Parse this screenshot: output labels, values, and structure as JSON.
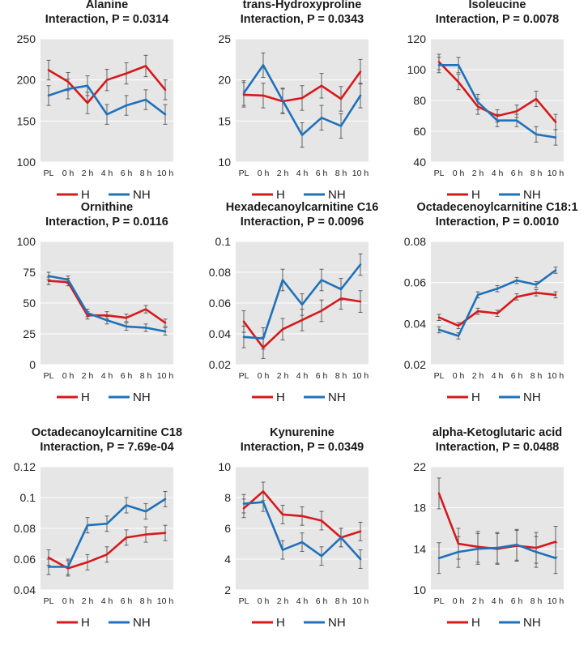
{
  "figure": {
    "legend": [
      {
        "key": "H",
        "label": "H",
        "color": "#d7191c"
      },
      {
        "key": "NH",
        "label": "NH",
        "color": "#1f72b9"
      }
    ],
    "plot_background": "#e6e6e6",
    "gridline_color": "#ffffff",
    "error_bar_color": "#555555"
  },
  "chart_data": [
    {
      "type": "line",
      "name": "Alanine",
      "title": "Alanine",
      "subtitle": "Interaction, P = 0.0314",
      "categories": [
        "PL",
        "0 h",
        "2 h",
        "4 h",
        "6 h",
        "8 h",
        "10 h"
      ],
      "ylim": [
        100,
        250
      ],
      "yticks": [
        100,
        150,
        200,
        250
      ],
      "ytick_labels": [
        "100",
        "150",
        "200",
        "250"
      ],
      "grid": true,
      "legend_position": "bottom",
      "series": [
        {
          "name": "H",
          "values": [
            212,
            198,
            172,
            200,
            208,
            217,
            188
          ],
          "errors": [
            12,
            11,
            13,
            13,
            13,
            13,
            12
          ]
        },
        {
          "name": "NH",
          "values": [
            181,
            189,
            193,
            158,
            169,
            176,
            158
          ],
          "errors": [
            12,
            12,
            12,
            12,
            12,
            12,
            12
          ]
        }
      ]
    },
    {
      "type": "line",
      "name": "trans-Hydroxyproline",
      "title": "trans-Hydroxyproline",
      "subtitle": "Interaction, P = 0.0343",
      "categories": [
        "PL",
        "0 h",
        "2 h",
        "4 h",
        "6 h",
        "8 h",
        "10 h"
      ],
      "ylim": [
        10,
        25
      ],
      "yticks": [
        10,
        15,
        20,
        25
      ],
      "ytick_labels": [
        "10",
        "15",
        "20",
        "25"
      ],
      "grid": true,
      "legend_position": "bottom",
      "series": [
        {
          "name": "H",
          "values": [
            18.2,
            18.1,
            17.4,
            17.8,
            19.3,
            17.7,
            21.0
          ],
          "errors": [
            1.5,
            1.5,
            1.5,
            1.5,
            1.5,
            1.5,
            1.5
          ]
        },
        {
          "name": "NH",
          "values": [
            18.4,
            21.8,
            17.5,
            13.3,
            15.4,
            14.4,
            18.1
          ],
          "errors": [
            1.5,
            1.5,
            1.5,
            1.5,
            1.5,
            1.5,
            1.5
          ]
        }
      ]
    },
    {
      "type": "line",
      "name": "Isoleucine",
      "title": "Isoleucine",
      "subtitle": "Interaction, P = 0.0078",
      "categories": [
        "PL",
        "0 h",
        "2 h",
        "4 h",
        "6 h",
        "8 h",
        "10 h"
      ],
      "ylim": [
        40,
        120
      ],
      "yticks": [
        40,
        60,
        80,
        100,
        120
      ],
      "ytick_labels": [
        "40",
        "60",
        "80",
        "100",
        "120"
      ],
      "grid": true,
      "legend_position": "bottom",
      "series": [
        {
          "name": "H",
          "values": [
            105,
            92,
            76,
            70,
            73,
            81,
            66
          ],
          "errors": [
            5,
            5,
            5,
            4,
            4,
            5,
            5
          ]
        },
        {
          "name": "NH",
          "values": [
            103,
            103,
            79,
            67,
            67,
            58,
            56
          ],
          "errors": [
            5,
            5,
            5,
            4,
            4,
            5,
            5
          ]
        }
      ]
    },
    {
      "type": "line",
      "name": "Ornithine",
      "title": "Ornithine",
      "subtitle": "Interaction, P = 0.0116",
      "categories": [
        "PL",
        "0 h",
        "2 h",
        "4 h",
        "6 h",
        "8 h",
        "10 h"
      ],
      "ylim": [
        0,
        100
      ],
      "yticks": [
        0,
        25,
        50,
        75,
        100
      ],
      "ytick_labels": [
        "0",
        "25",
        "50",
        "75",
        "100"
      ],
      "grid": true,
      "legend_position": "bottom",
      "series": [
        {
          "name": "H",
          "values": [
            68,
            67,
            40,
            40,
            38,
            45,
            34
          ],
          "errors": [
            3,
            3,
            3,
            3,
            3,
            3,
            3
          ]
        },
        {
          "name": "NH",
          "values": [
            72,
            69,
            42,
            36,
            31,
            30,
            27
          ],
          "errors": [
            3,
            3,
            3,
            3,
            3,
            3,
            3
          ]
        }
      ]
    },
    {
      "type": "line",
      "name": "Hexadecanoylcarnitine C16",
      "title": "Hexadecanoylcarnitine C16",
      "subtitle": "Interaction, P = 0.0096",
      "categories": [
        "PL",
        "0 h",
        "2 h",
        "4 h",
        "6 h",
        "8 h",
        "10 h"
      ],
      "ylim": [
        0.02,
        0.1
      ],
      "yticks": [
        0.02,
        0.04,
        0.06,
        0.08,
        0.1
      ],
      "ytick_labels": [
        "0.02",
        "0.04",
        "0.06",
        "0.08",
        "0.1"
      ],
      "grid": true,
      "legend_position": "bottom",
      "series": [
        {
          "name": "H",
          "values": [
            0.048,
            0.031,
            0.043,
            0.049,
            0.055,
            0.063,
            0.061
          ],
          "errors": [
            0.007,
            0.007,
            0.007,
            0.007,
            0.007,
            0.007,
            0.007
          ]
        },
        {
          "name": "NH",
          "values": [
            0.038,
            0.037,
            0.075,
            0.059,
            0.075,
            0.069,
            0.085
          ],
          "errors": [
            0.007,
            0.007,
            0.007,
            0.007,
            0.007,
            0.007,
            0.007
          ]
        }
      ]
    },
    {
      "type": "line",
      "name": "Octadecenoylcarnitine C18:1",
      "title": "Octadecenoylcarnitine C18:1",
      "subtitle": "Interaction, P = 0.0010",
      "categories": [
        "PL",
        "0 h",
        "2 h",
        "4 h",
        "6 h",
        "8 h",
        "10 h"
      ],
      "ylim": [
        0.02,
        0.08
      ],
      "yticks": [
        0.02,
        0.04,
        0.06,
        0.08
      ],
      "ytick_labels": [
        "0.02",
        "0.04",
        "0.06",
        "0.08"
      ],
      "grid": true,
      "legend_position": "bottom",
      "series": [
        {
          "name": "H",
          "values": [
            0.043,
            0.039,
            0.046,
            0.045,
            0.053,
            0.055,
            0.054
          ],
          "errors": [
            0.0015,
            0.0015,
            0.0015,
            0.0015,
            0.0015,
            0.0015,
            0.0015
          ]
        },
        {
          "name": "NH",
          "values": [
            0.037,
            0.034,
            0.054,
            0.057,
            0.061,
            0.059,
            0.066
          ],
          "errors": [
            0.0015,
            0.0015,
            0.0015,
            0.0015,
            0.0015,
            0.0015,
            0.0015
          ]
        }
      ]
    },
    {
      "type": "line",
      "name": "Octadecanoylcarnitine C18",
      "title": "Octadecanoylcarnitine C18",
      "subtitle": "Interaction, P = 7.69e-04",
      "categories": [
        "PL",
        "0 h",
        "2 h",
        "4 h",
        "6 h",
        "8 h",
        "10 h"
      ],
      "ylim": [
        0.04,
        0.12
      ],
      "yticks": [
        0.04,
        0.06,
        0.08,
        0.1,
        0.12
      ],
      "ytick_labels": [
        "0.04",
        "0.06",
        "0.08",
        "0.1",
        "0.12"
      ],
      "grid": true,
      "legend_position": "bottom",
      "series": [
        {
          "name": "H",
          "values": [
            0.061,
            0.054,
            0.058,
            0.063,
            0.074,
            0.076,
            0.077
          ],
          "errors": [
            0.005,
            0.005,
            0.005,
            0.005,
            0.005,
            0.005,
            0.005
          ]
        },
        {
          "name": "NH",
          "values": [
            0.055,
            0.055,
            0.082,
            0.083,
            0.095,
            0.091,
            0.099
          ],
          "errors": [
            0.005,
            0.005,
            0.005,
            0.005,
            0.005,
            0.005,
            0.005
          ]
        }
      ]
    },
    {
      "type": "line",
      "name": "Kynurenine",
      "title": "Kynurenine",
      "subtitle": "Interaction, P = 0.0349",
      "categories": [
        "PL",
        "0 h",
        "2 h",
        "4 h",
        "6 h",
        "8 h",
        "10 h"
      ],
      "ylim": [
        2,
        10
      ],
      "yticks": [
        2,
        4,
        6,
        8,
        10
      ],
      "ytick_labels": [
        "2",
        "4",
        "6",
        "8",
        "10"
      ],
      "grid": true,
      "legend_position": "bottom",
      "series": [
        {
          "name": "H",
          "values": [
            7.3,
            8.4,
            6.9,
            6.8,
            6.5,
            5.4,
            5.8
          ],
          "errors": [
            0.6,
            0.6,
            0.6,
            0.6,
            0.6,
            0.6,
            0.6
          ]
        },
        {
          "name": "NH",
          "values": [
            7.6,
            7.7,
            4.6,
            5.1,
            4.2,
            5.4,
            4.0
          ],
          "errors": [
            0.6,
            0.6,
            0.6,
            0.6,
            0.6,
            0.6,
            0.6
          ]
        }
      ]
    },
    {
      "type": "line",
      "name": "alpha-Ketoglutaric acid",
      "title": "alpha-Ketoglutaric acid",
      "subtitle": "Interaction, P = 0.0488",
      "categories": [
        "PL",
        "0 h",
        "2 h",
        "4 h",
        "6 h",
        "8 h",
        "10 h"
      ],
      "ylim": [
        10,
        22
      ],
      "yticks": [
        10,
        14,
        18,
        22
      ],
      "ytick_labels": [
        "10",
        "14",
        "18",
        "22"
      ],
      "grid": true,
      "legend_position": "bottom",
      "series": [
        {
          "name": "H",
          "values": [
            19.4,
            14.5,
            14.2,
            14.0,
            14.3,
            14.1,
            14.7
          ],
          "errors": [
            1.5,
            1.5,
            1.5,
            1.5,
            1.5,
            1.5,
            1.5
          ]
        },
        {
          "name": "NH",
          "values": [
            13.1,
            13.7,
            14.0,
            14.1,
            14.4,
            13.7,
            13.1
          ],
          "errors": [
            1.5,
            1.5,
            1.5,
            1.5,
            1.5,
            1.5,
            1.5
          ]
        }
      ]
    }
  ]
}
